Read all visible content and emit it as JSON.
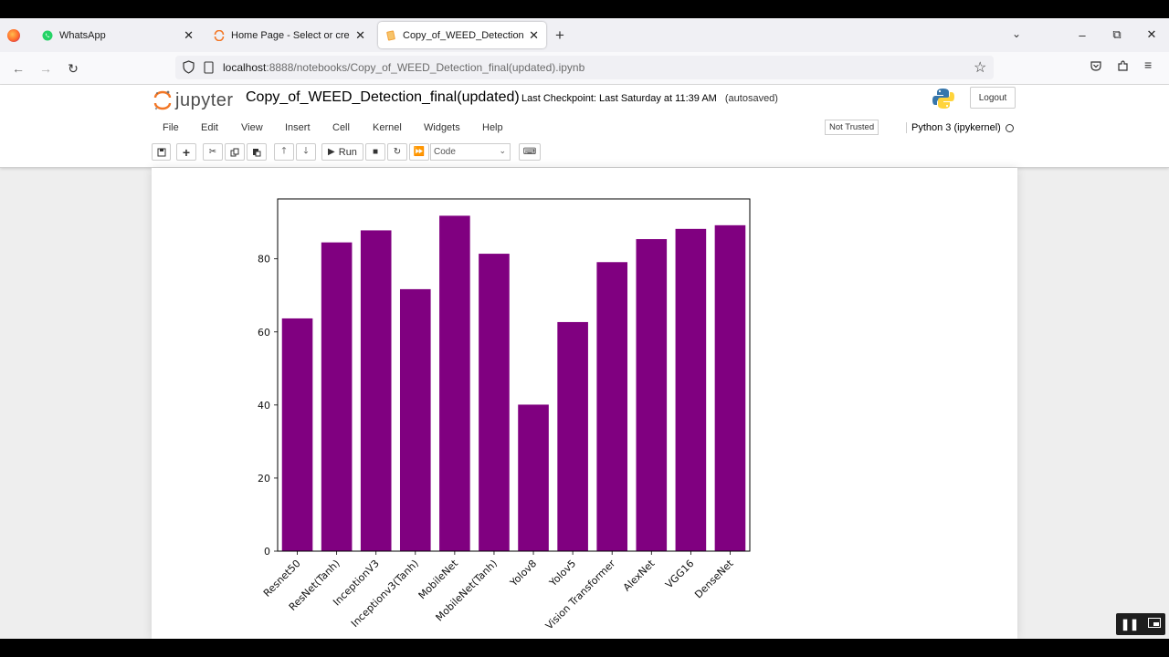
{
  "browser": {
    "tabs": [
      {
        "title": "WhatsApp",
        "active": false
      },
      {
        "title": "Home Page - Select or create a",
        "active": false
      },
      {
        "title": "Copy_of_WEED_Detection_fina",
        "active": true
      }
    ],
    "url_host": "localhost",
    "url_rest": ":8888/notebooks/Copy_of_WEED_Detection_final(updated).ipynb"
  },
  "jupyter": {
    "logo_text": "jupyter",
    "notebook_title": "Copy_of_WEED_Detection_final(updated)",
    "checkpoint": "Last Checkpoint: Last Saturday at 11:39 AM",
    "autosave": "(autosaved)",
    "logout_label": "Logout",
    "menu": [
      "File",
      "Edit",
      "View",
      "Insert",
      "Cell",
      "Kernel",
      "Widgets",
      "Help"
    ],
    "trust_status": "Not Trusted",
    "kernel": "Python 3 (ipykernel)",
    "toolbar": {
      "run_label": "Run",
      "cell_type": "Code"
    }
  },
  "colors": {
    "bar": "#800080",
    "accent_jupyter": "#f37726"
  },
  "chart_data": {
    "type": "bar",
    "categories": [
      "Resnet50",
      "ResNet(Tanh)",
      "InceptionV3",
      "Inceptionv3(Tanh)",
      "MobileNet",
      "MobileNet(Tanh)",
      "Yolov8",
      "Yolov5",
      "Vision Transformer",
      "AlexNet",
      "VGG16",
      "DenseNet"
    ],
    "values": [
      63.7,
      84.5,
      87.8,
      71.7,
      91.8,
      81.4,
      40.1,
      62.7,
      79.1,
      85.4,
      88.2,
      89.2
    ],
    "yticks": [
      0,
      20,
      40,
      60,
      80
    ],
    "ylim": [
      0,
      96.4
    ],
    "title": "",
    "xlabel": "",
    "ylabel": "",
    "color": "#800080"
  }
}
